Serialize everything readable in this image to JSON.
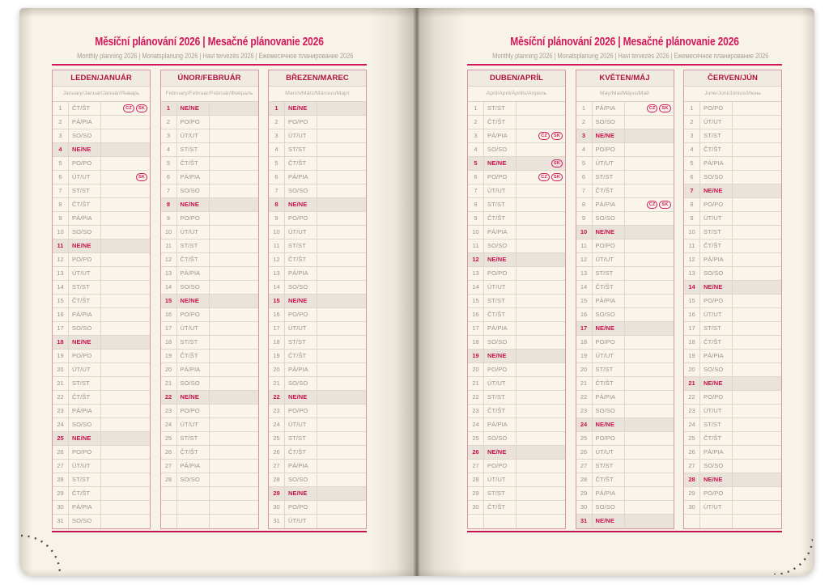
{
  "title": "Měsíční plánování 2026 | Mesačné plánovanie 2026",
  "subtitle": "Monthly planning 2026 | Monatsplanung 2026 | Havi tervezés 2026 | Ежемесячное планирование 2026",
  "holiday_badges": [
    "CZ",
    "SK"
  ],
  "weekday_abbreviations": {
    "monday": "PO/PO",
    "tuesday": "ÚT/UT",
    "wednesday": "ST/ST",
    "thursday": "ČT/ŠT",
    "friday": "PÁ/PIA",
    "saturday": "SO/SO",
    "sunday": "NE/NE"
  },
  "colors": {
    "title_pink": "#d4175a",
    "month_header_red": "#b31245",
    "sunday_red": "#c8124a",
    "sunday_row_bg": "#eae3db",
    "weekday_text_gray": "#9a938a",
    "table_outer_border": "#d694a6",
    "grid_line": "#ded7c7",
    "page_background": "#f8f3e8",
    "bottom_rule_red": "#c2134e"
  },
  "months": [
    {
      "id": "january",
      "page": "left",
      "name": "LEDEN/JANUÁR",
      "languages": "January/Januar/Január/Январь",
      "days": [
        [
          1,
          "ČT/ŠT",
          [
            "CZ",
            "SK"
          ]
        ],
        [
          2,
          "PÁ/PIA"
        ],
        [
          3,
          "SO/SO"
        ],
        [
          4,
          "NE/NE"
        ],
        [
          5,
          "PO/PO"
        ],
        [
          6,
          "ÚT/UT",
          [
            "SK"
          ]
        ],
        [
          7,
          "ST/ST"
        ],
        [
          8,
          "ČT/ŠT"
        ],
        [
          9,
          "PÁ/PIA"
        ],
        [
          10,
          "SO/SO"
        ],
        [
          11,
          "NE/NE"
        ],
        [
          12,
          "PO/PO"
        ],
        [
          13,
          "ÚT/UT"
        ],
        [
          14,
          "ST/ST"
        ],
        [
          15,
          "ČT/ŠT"
        ],
        [
          16,
          "PÁ/PIA"
        ],
        [
          17,
          "SO/SO"
        ],
        [
          18,
          "NE/NE"
        ],
        [
          19,
          "PO/PO"
        ],
        [
          20,
          "ÚT/UT"
        ],
        [
          21,
          "ST/ST"
        ],
        [
          22,
          "ČT/ŠT"
        ],
        [
          23,
          "PÁ/PIA"
        ],
        [
          24,
          "SO/SO"
        ],
        [
          25,
          "NE/NE"
        ],
        [
          26,
          "PO/PO"
        ],
        [
          27,
          "ÚT/UT"
        ],
        [
          28,
          "ST/ST"
        ],
        [
          29,
          "ČT/ŠT"
        ],
        [
          30,
          "PÁ/PIA"
        ],
        [
          31,
          "SO/SO"
        ]
      ]
    },
    {
      "id": "february",
      "page": "left",
      "name": "ÚNOR/FEBRUÁR",
      "languages": "February/Februar/Február/Февраль",
      "days": [
        [
          1,
          "NE/NE"
        ],
        [
          2,
          "PO/PO"
        ],
        [
          3,
          "ÚT/UT"
        ],
        [
          4,
          "ST/ST"
        ],
        [
          5,
          "ČT/ŠT"
        ],
        [
          6,
          "PÁ/PIA"
        ],
        [
          7,
          "SO/SO"
        ],
        [
          8,
          "NE/NE"
        ],
        [
          9,
          "PO/PO"
        ],
        [
          10,
          "ÚT/UT"
        ],
        [
          11,
          "ST/ST"
        ],
        [
          12,
          "ČT/ŠT"
        ],
        [
          13,
          "PÁ/PIA"
        ],
        [
          14,
          "SO/SO"
        ],
        [
          15,
          "NE/NE"
        ],
        [
          16,
          "PO/PO"
        ],
        [
          17,
          "ÚT/UT"
        ],
        [
          18,
          "ST/ST"
        ],
        [
          19,
          "ČT/ŠT"
        ],
        [
          20,
          "PÁ/PIA"
        ],
        [
          21,
          "SO/SO"
        ],
        [
          22,
          "NE/NE"
        ],
        [
          23,
          "PO/PO"
        ],
        [
          24,
          "ÚT/UT"
        ],
        [
          25,
          "ST/ST"
        ],
        [
          26,
          "ČT/ŠT"
        ],
        [
          27,
          "PÁ/PIA"
        ],
        [
          28,
          "SO/SO"
        ],
        [
          null,
          ""
        ],
        [
          null,
          ""
        ],
        [
          null,
          ""
        ]
      ]
    },
    {
      "id": "march",
      "page": "left",
      "name": "BŘEZEN/MAREC",
      "languages": "March/März/Március/Март",
      "days": [
        [
          1,
          "NE/NE"
        ],
        [
          2,
          "PO/PO"
        ],
        [
          3,
          "ÚT/UT"
        ],
        [
          4,
          "ST/ST"
        ],
        [
          5,
          "ČT/ŠT"
        ],
        [
          6,
          "PÁ/PIA"
        ],
        [
          7,
          "SO/SO"
        ],
        [
          8,
          "NE/NE"
        ],
        [
          9,
          "PO/PO"
        ],
        [
          10,
          "ÚT/UT"
        ],
        [
          11,
          "ST/ST"
        ],
        [
          12,
          "ČT/ŠT"
        ],
        [
          13,
          "PÁ/PIA"
        ],
        [
          14,
          "SO/SO"
        ],
        [
          15,
          "NE/NE"
        ],
        [
          16,
          "PO/PO"
        ],
        [
          17,
          "ÚT/UT"
        ],
        [
          18,
          "ST/ST"
        ],
        [
          19,
          "ČT/ŠT"
        ],
        [
          20,
          "PÁ/PIA"
        ],
        [
          21,
          "SO/SO"
        ],
        [
          22,
          "NE/NE"
        ],
        [
          23,
          "PO/PO"
        ],
        [
          24,
          "ÚT/UT"
        ],
        [
          25,
          "ST/ST"
        ],
        [
          26,
          "ČT/ŠT"
        ],
        [
          27,
          "PÁ/PIA"
        ],
        [
          28,
          "SO/SO"
        ],
        [
          29,
          "NE/NE"
        ],
        [
          30,
          "PO/PO"
        ],
        [
          31,
          "ÚT/UT"
        ]
      ]
    },
    {
      "id": "april",
      "page": "right",
      "name": "DUBEN/APRÍL",
      "languages": "April/April/Április/Апрель",
      "days": [
        [
          1,
          "ST/ST"
        ],
        [
          2,
          "ČT/ŠT"
        ],
        [
          3,
          "PÁ/PIA",
          [
            "CZ",
            "SK"
          ]
        ],
        [
          4,
          "SO/SO"
        ],
        [
          5,
          "NE/NE",
          [
            "SK"
          ]
        ],
        [
          6,
          "PO/PO",
          [
            "CZ",
            "SK"
          ]
        ],
        [
          7,
          "ÚT/UT"
        ],
        [
          8,
          "ST/ST"
        ],
        [
          9,
          "ČT/ŠT"
        ],
        [
          10,
          "PÁ/PIA"
        ],
        [
          11,
          "SO/SO"
        ],
        [
          12,
          "NE/NE"
        ],
        [
          13,
          "PO/PO"
        ],
        [
          14,
          "ÚT/UT"
        ],
        [
          15,
          "ST/ST"
        ],
        [
          16,
          "ČT/ŠT"
        ],
        [
          17,
          "PÁ/PIA"
        ],
        [
          18,
          "SO/SO"
        ],
        [
          19,
          "NE/NE"
        ],
        [
          20,
          "PO/PO"
        ],
        [
          21,
          "ÚT/UT"
        ],
        [
          22,
          "ST/ST"
        ],
        [
          23,
          "ČT/ŠT"
        ],
        [
          24,
          "PÁ/PIA"
        ],
        [
          25,
          "SO/SO"
        ],
        [
          26,
          "NE/NE"
        ],
        [
          27,
          "PO/PO"
        ],
        [
          28,
          "ÚT/UT"
        ],
        [
          29,
          "ST/ST"
        ],
        [
          30,
          "ČT/ŠT"
        ],
        [
          null,
          ""
        ]
      ]
    },
    {
      "id": "may",
      "page": "right",
      "name": "KVĚTEN/MÁJ",
      "languages": "May/Mai/Május/Май",
      "days": [
        [
          1,
          "PÁ/PIA",
          [
            "CZ",
            "SK"
          ]
        ],
        [
          2,
          "SO/SO"
        ],
        [
          3,
          "NE/NE"
        ],
        [
          4,
          "PO/PO"
        ],
        [
          5,
          "ÚT/UT"
        ],
        [
          6,
          "ST/ST"
        ],
        [
          7,
          "ČT/ŠT"
        ],
        [
          8,
          "PÁ/PIA",
          [
            "CZ",
            "SK"
          ]
        ],
        [
          9,
          "SO/SO"
        ],
        [
          10,
          "NE/NE"
        ],
        [
          11,
          "PO/PO"
        ],
        [
          12,
          "ÚT/UT"
        ],
        [
          13,
          "ST/ST"
        ],
        [
          14,
          "ČT/ŠT"
        ],
        [
          15,
          "PÁ/PIA"
        ],
        [
          16,
          "SO/SO"
        ],
        [
          17,
          "NE/NE"
        ],
        [
          18,
          "PO/PO"
        ],
        [
          19,
          "ÚT/UT"
        ],
        [
          20,
          "ST/ST"
        ],
        [
          21,
          "ČT/ŠT"
        ],
        [
          22,
          "PÁ/PIA"
        ],
        [
          23,
          "SO/SO"
        ],
        [
          24,
          "NE/NE"
        ],
        [
          25,
          "PO/PO"
        ],
        [
          26,
          "ÚT/UT"
        ],
        [
          27,
          "ST/ST"
        ],
        [
          28,
          "ČT/ŠT"
        ],
        [
          29,
          "PÁ/PIA"
        ],
        [
          30,
          "SO/SO"
        ],
        [
          31,
          "NE/NE"
        ]
      ]
    },
    {
      "id": "june",
      "page": "right",
      "name": "ČERVEN/JÚN",
      "languages": "June/Juni/Június/Июнь",
      "days": [
        [
          1,
          "PO/PO"
        ],
        [
          2,
          "ÚT/UT"
        ],
        [
          3,
          "ST/ST"
        ],
        [
          4,
          "ČT/ŠT"
        ],
        [
          5,
          "PÁ/PIA"
        ],
        [
          6,
          "SO/SO"
        ],
        [
          7,
          "NE/NE"
        ],
        [
          8,
          "PO/PO"
        ],
        [
          9,
          "ÚT/UT"
        ],
        [
          10,
          "ST/ST"
        ],
        [
          11,
          "ČT/ŠT"
        ],
        [
          12,
          "PÁ/PIA"
        ],
        [
          13,
          "SO/SO"
        ],
        [
          14,
          "NE/NE"
        ],
        [
          15,
          "PO/PO"
        ],
        [
          16,
          "ÚT/UT"
        ],
        [
          17,
          "ST/ST"
        ],
        [
          18,
          "ČT/ŠT"
        ],
        [
          19,
          "PÁ/PIA"
        ],
        [
          20,
          "SO/SO"
        ],
        [
          21,
          "NE/NE"
        ],
        [
          22,
          "PO/PO"
        ],
        [
          23,
          "ÚT/UT"
        ],
        [
          24,
          "ST/ST"
        ],
        [
          25,
          "ČT/ŠT"
        ],
        [
          26,
          "PÁ/PIA"
        ],
        [
          27,
          "SO/SO"
        ],
        [
          28,
          "NE/NE"
        ],
        [
          29,
          "PO/PO"
        ],
        [
          30,
          "ÚT/UT"
        ],
        [
          null,
          ""
        ]
      ]
    }
  ]
}
